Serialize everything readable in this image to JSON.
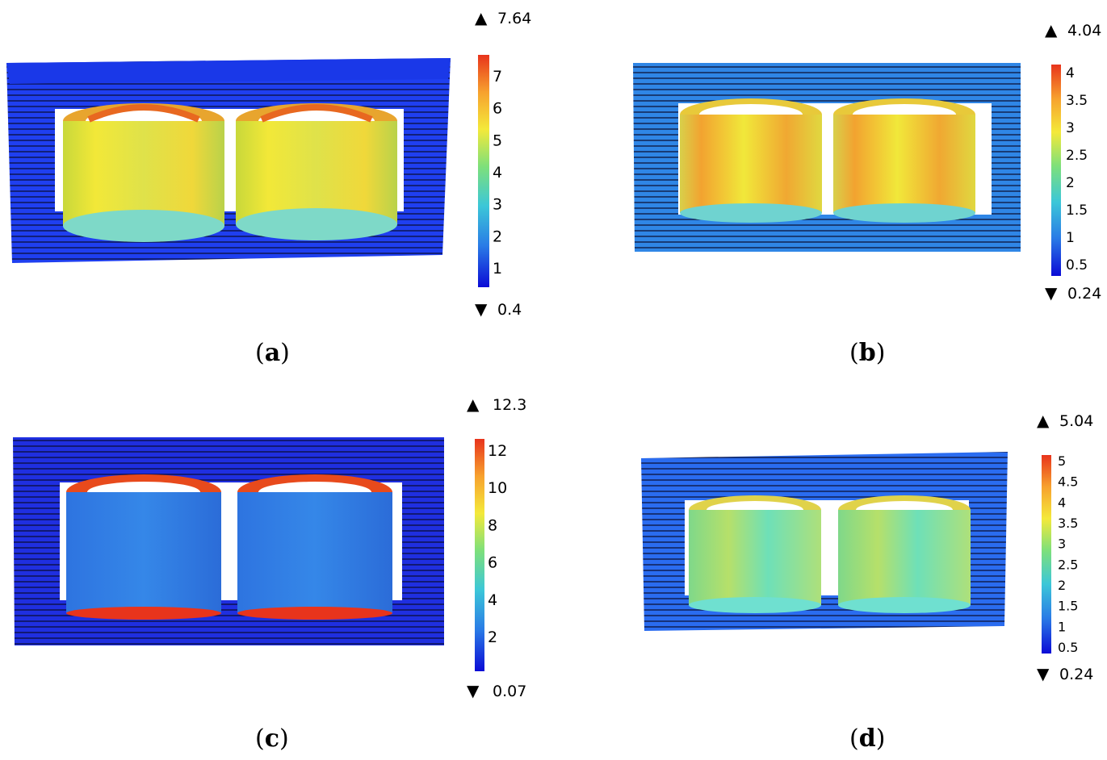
{
  "panels": [
    {
      "id": "a",
      "label": "a",
      "max": "7.64",
      "min": "0.4",
      "ticks": [
        "7",
        "6",
        "5",
        "4",
        "3",
        "2",
        "1"
      ],
      "coil_scheme": "yellow",
      "core_tint": "#1f3ff0"
    },
    {
      "id": "b",
      "label": "b",
      "max": "4.04",
      "min": "0.24",
      "ticks": [
        "4",
        "3.5",
        "3",
        "2.5",
        "2",
        "1.5",
        "1",
        "0.5"
      ],
      "coil_scheme": "orange",
      "core_tint": "#2f86e6"
    },
    {
      "id": "c",
      "label": "c",
      "max": "12.3",
      "min": "0.07",
      "ticks": [
        "12",
        "10",
        "8",
        "6",
        "4",
        "2"
      ],
      "coil_scheme": "blue",
      "core_tint": "#1f2fe0"
    },
    {
      "id": "d",
      "label": "d",
      "max": "5.04",
      "min": "0.24",
      "ticks": [
        "5",
        "4.5",
        "4",
        "3.5",
        "3",
        "2.5",
        "2",
        "1.5",
        "1",
        "0.5"
      ],
      "coil_scheme": "cyan",
      "core_tint": "#2a6cf0"
    }
  ],
  "colors": {
    "rainbow": [
      "#0b0bd6",
      "#2a7ce6",
      "#3cc7d8",
      "#7ee07a",
      "#f4e93a",
      "#f7a12e",
      "#e8341c"
    ]
  }
}
